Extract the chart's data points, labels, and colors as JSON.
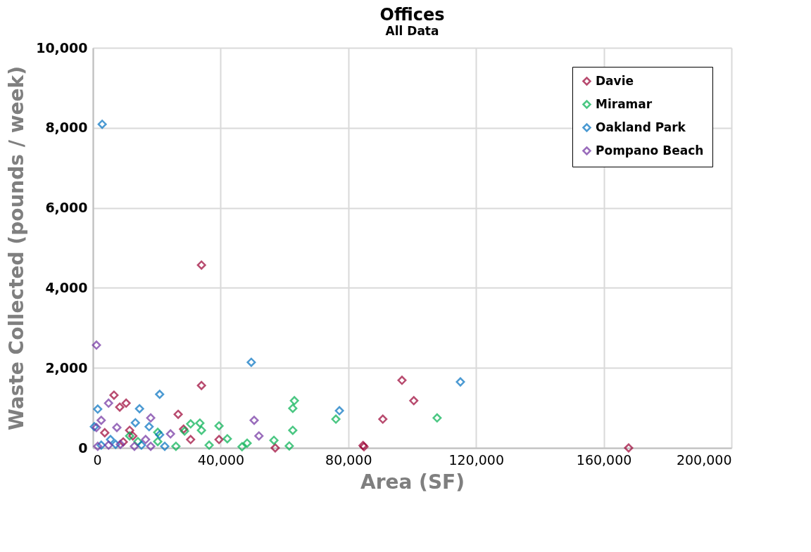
{
  "chart_data": {
    "type": "scatter",
    "title": "Offices",
    "subtitle": "All Data",
    "xlabel": "Area (SF)",
    "ylabel": "Waste Collected (pounds / week)",
    "xlim": [
      0,
      200000
    ],
    "xticks": [
      {
        "value": 0,
        "label": "0"
      },
      {
        "value": 40000,
        "label": "40,000"
      },
      {
        "value": 80000,
        "label": "80,000"
      },
      {
        "value": 120000,
        "label": "120,000"
      },
      {
        "value": 160000,
        "label": "160,000"
      },
      {
        "value": 200000,
        "label": "200,000"
      }
    ],
    "ylim": [
      0,
      10000
    ],
    "yticks": [
      {
        "value": 0,
        "label": "0"
      },
      {
        "value": 2000,
        "label": "2,000"
      },
      {
        "value": 4000,
        "label": "4,000"
      },
      {
        "value": 6000,
        "label": "6,000"
      },
      {
        "value": 8000,
        "label": "8,000"
      },
      {
        "value": 10000,
        "label": "10,000"
      }
    ],
    "grid": true,
    "legend": "top right",
    "marker": "diamond",
    "series": [
      {
        "name": "Davie",
        "color": "#9b0033",
        "x": [
          34000,
          34000,
          96800,
          100500,
          90800,
          84900,
          84600,
          167800,
          6600,
          8400,
          10400,
          26700,
          28400,
          30600,
          39500,
          3700,
          11500,
          57100,
          12500,
          9500
        ],
        "values": [
          4570,
          1560,
          1690,
          1180,
          720,
          30,
          60,
          0,
          1320,
          1020,
          1120,
          840,
          470,
          210,
          210,
          380,
          440,
          0,
          300,
          150
        ]
      },
      {
        "name": "Miramar",
        "color": "#00b050",
        "x": [
          39500,
          42100,
          46700,
          48300,
          56700,
          61500,
          62600,
          62600,
          63100,
          76100,
          107800,
          30600,
          33500,
          34000,
          36400,
          20300,
          11500,
          14100,
          26000,
          28700,
          20300
        ],
        "values": [
          550,
          230,
          30,
          120,
          190,
          50,
          440,
          990,
          1180,
          720,
          750,
          600,
          620,
          440,
          70,
          390,
          300,
          160,
          40,
          420,
          160
        ]
      },
      {
        "name": "Oakland Park",
        "color": "#0070c0",
        "x": [
          2900,
          49600,
          115100,
          77200,
          20900,
          1500,
          14600,
          13300,
          17600,
          440,
          20900,
          5500,
          2600,
          15200,
          22500,
          7100
        ],
        "values": [
          8090,
          2140,
          1650,
          930,
          1340,
          970,
          980,
          630,
          530,
          530,
          330,
          210,
          70,
          70,
          40,
          90
        ]
      },
      {
        "name": "Pompano Beach",
        "color": "#7030a0",
        "x": [
          1100,
          50500,
          52000,
          4900,
          2600,
          18100,
          7500,
          1100,
          24300,
          16500,
          8600,
          1500,
          13000,
          18100,
          4900
        ],
        "values": [
          2570,
          690,
          300,
          1120,
          690,
          750,
          510,
          510,
          350,
          210,
          90,
          40,
          40,
          40,
          70
        ]
      }
    ]
  }
}
